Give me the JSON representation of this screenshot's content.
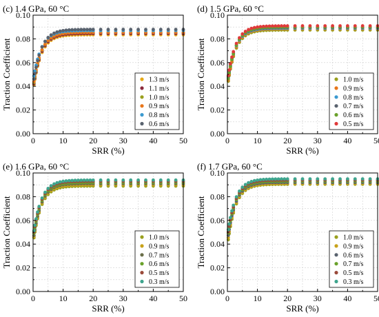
{
  "chart_data": [
    {
      "type": "scatter",
      "title": "(c) 1.4 GPa, 60 °C",
      "xlabel": "SRR (%)",
      "ylabel": "Traction Coefficient",
      "xlim": [
        0,
        50
      ],
      "ylim": [
        0,
        0.1
      ],
      "xticks": [
        "0",
        "10",
        "20",
        "30",
        "40",
        "50"
      ],
      "yticks": [
        "0.00",
        "0.02",
        "0.04",
        "0.06",
        "0.08",
        "0.10"
      ],
      "grid": true,
      "legend_position": "bottom-right",
      "series": [
        {
          "name": "1.3 m/s",
          "color": "#e6a817",
          "mu_max": 0.0835,
          "mu_start": 0.036
        },
        {
          "name": "1.1 m/s",
          "color": "#8c2a3c",
          "mu_max": 0.0845,
          "mu_start": 0.037
        },
        {
          "name": "1.0 m/s",
          "color": "#9aa01e",
          "mu_max": 0.0855,
          "mu_start": 0.038
        },
        {
          "name": "0.9 m/s",
          "color": "#e8761b",
          "mu_max": 0.0855,
          "mu_start": 0.039
        },
        {
          "name": "0.8 m/s",
          "color": "#3c9ad0",
          "mu_max": 0.087,
          "mu_start": 0.044
        },
        {
          "name": "0.6 m/s",
          "color": "#59626e",
          "mu_max": 0.088,
          "mu_start": 0.041
        }
      ]
    },
    {
      "type": "scatter",
      "title": "(d) 1.5 GPa, 60 °C",
      "xlabel": "SRR (%)",
      "ylabel": "Traction Coefficient",
      "xlim": [
        0,
        50
      ],
      "ylim": [
        0,
        0.1
      ],
      "xticks": [
        "0",
        "10",
        "20",
        "30",
        "40",
        "50"
      ],
      "yticks": [
        "0.00",
        "0.02",
        "0.04",
        "0.06",
        "0.08",
        "0.10"
      ],
      "grid": true,
      "legend_position": "bottom-right",
      "series": [
        {
          "name": "1.0 m/s",
          "color": "#9aa01e",
          "mu_max": 0.0875,
          "mu_start": 0.039
        },
        {
          "name": "0.9 m/s",
          "color": "#e8761b",
          "mu_max": 0.0885,
          "mu_start": 0.04
        },
        {
          "name": "0.8 m/s",
          "color": "#3c9ad0",
          "mu_max": 0.089,
          "mu_start": 0.042
        },
        {
          "name": "0.7 m/s",
          "color": "#59626e",
          "mu_max": 0.0895,
          "mu_start": 0.043
        },
        {
          "name": "0.6 m/s",
          "color": "#6aa12b",
          "mu_max": 0.09,
          "mu_start": 0.041
        },
        {
          "name": "0.5 m/s",
          "color": "#e03a3a",
          "mu_max": 0.091,
          "mu_start": 0.044
        }
      ]
    },
    {
      "type": "scatter",
      "title": "(e) 1.6 GPa, 60 °C",
      "xlabel": "SRR (%)",
      "ylabel": "Traction Coefficient",
      "xlim": [
        0,
        50
      ],
      "ylim": [
        0,
        0.1
      ],
      "xticks": [
        "0",
        "10",
        "20",
        "30",
        "40",
        "50"
      ],
      "yticks": [
        "0.00",
        "0.02",
        "0.04",
        "0.06",
        "0.08",
        "0.10"
      ],
      "grid": true,
      "legend_position": "bottom-right",
      "series": [
        {
          "name": "1.0 m/s",
          "color": "#9aa01e",
          "mu_max": 0.089,
          "mu_start": 0.04
        },
        {
          "name": "0.9 m/s",
          "color": "#c8a21a",
          "mu_max": 0.09,
          "mu_start": 0.041
        },
        {
          "name": "0.7 m/s",
          "color": "#6b6f4a",
          "mu_max": 0.091,
          "mu_start": 0.042
        },
        {
          "name": "0.6 m/s",
          "color": "#6aa12b",
          "mu_max": 0.092,
          "mu_start": 0.044
        },
        {
          "name": "0.5 m/s",
          "color": "#9a4a3a",
          "mu_max": 0.093,
          "mu_start": 0.045
        },
        {
          "name": "0.3 m/s",
          "color": "#3ea58e",
          "mu_max": 0.094,
          "mu_start": 0.046
        }
      ]
    },
    {
      "type": "scatter",
      "title": "(f) 1.7 GPa, 60 °C",
      "xlabel": "SRR (%)",
      "ylabel": "Traction Coefficient",
      "xlim": [
        0,
        50
      ],
      "ylim": [
        0,
        0.1
      ],
      "xticks": [
        "0",
        "10",
        "20",
        "30",
        "40",
        "50"
      ],
      "yticks": [
        "0.00",
        "0.02",
        "0.04",
        "0.06",
        "0.08",
        "0.10"
      ],
      "grid": true,
      "legend_position": "bottom-right",
      "series": [
        {
          "name": "1.0 m/s",
          "color": "#9aa01e",
          "mu_max": 0.0905,
          "mu_start": 0.038
        },
        {
          "name": "0.9 m/s",
          "color": "#c8a21a",
          "mu_max": 0.091,
          "mu_start": 0.04
        },
        {
          "name": "0.6 m/s",
          "color": "#59626e",
          "mu_max": 0.092,
          "mu_start": 0.042
        },
        {
          "name": "0.7 m/s",
          "color": "#6aa12b",
          "mu_max": 0.093,
          "mu_start": 0.044
        },
        {
          "name": "0.5 m/s",
          "color": "#9a4a3a",
          "mu_max": 0.094,
          "mu_start": 0.045
        },
        {
          "name": "0.3 m/s",
          "color": "#3ea58e",
          "mu_max": 0.095,
          "mu_start": 0.047
        }
      ]
    }
  ]
}
